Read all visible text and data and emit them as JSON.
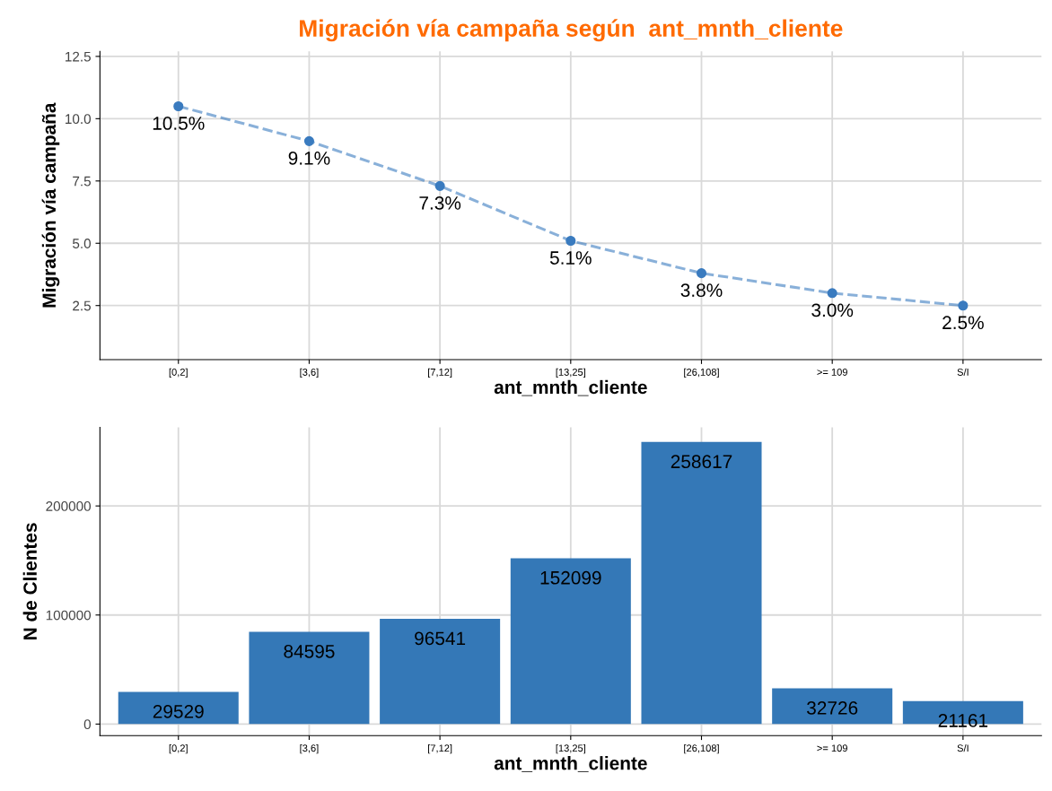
{
  "chart_data": [
    {
      "type": "line",
      "title": "Migración vía campaña según  ant_mnth_cliente",
      "xlabel": "ant_mnth_cliente",
      "ylabel": "Migración vía campaña",
      "categories": [
        "[0,2]",
        "[3,6]",
        "[7,12]",
        "[13,25]",
        "[26,108]",
        ">= 109",
        "S/I"
      ],
      "values": [
        10.5,
        9.1,
        7.3,
        5.1,
        3.8,
        3.0,
        2.5
      ],
      "value_labels": [
        "10.5%",
        "9.1%",
        "7.3%",
        "5.1%",
        "3.8%",
        "3.0%",
        "2.5%"
      ],
      "color": "#3a7bbf",
      "marker": "circle",
      "line_style": "dashed",
      "ylim": [
        0.33,
        12.7
      ],
      "yticks": [
        {
          "value": 2.5,
          "label": "2.5"
        },
        {
          "value": 5.0,
          "label": "5.0"
        },
        {
          "value": 7.5,
          "label": "7.5"
        },
        {
          "value": 10.0,
          "label": "10.0"
        },
        {
          "value": 12.5,
          "label": "12.5"
        }
      ],
      "grid": true
    },
    {
      "type": "bar",
      "xlabel": "ant_mnth_cliente",
      "ylabel": "N de Clientes",
      "categories": [
        "[0,2]",
        "[3,6]",
        "[7,12]",
        "[13,25]",
        "[26,108]",
        ">= 109",
        "S/I"
      ],
      "values": [
        29529,
        84595,
        96541,
        152099,
        258617,
        32726,
        21161
      ],
      "color": "#3478b7",
      "data_labels": true,
      "ylim": [
        -10600,
        272000
      ],
      "yticks": [
        0,
        100000,
        200000
      ],
      "grid": true
    }
  ]
}
